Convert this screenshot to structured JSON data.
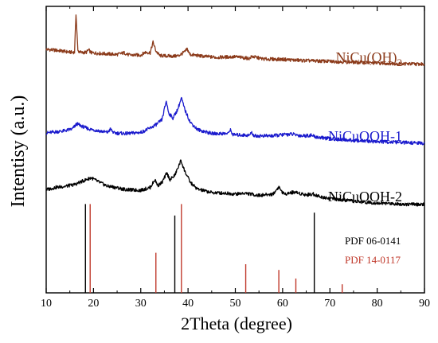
{
  "chart_data": {
    "type": "line",
    "title": "",
    "xlabel": "2Theta (degree)",
    "ylabel": "Intentisy (a.u.)",
    "xlim": [
      10,
      90
    ],
    "x_ticks": [
      "10",
      "20",
      "30",
      "40",
      "50",
      "60",
      "70",
      "80",
      "90"
    ],
    "y_ticks_shown": false,
    "grid": false,
    "legend": "inline labels at right of each curve",
    "series": [
      {
        "name": "NiCu(OH)2",
        "color": "#8b3a1a",
        "points": [
          [
            10,
            0.85
          ],
          [
            13,
            0.845
          ],
          [
            15,
            0.84
          ],
          [
            16,
            0.84
          ],
          [
            16.3,
            0.975
          ],
          [
            16.7,
            0.845
          ],
          [
            17.5,
            0.838
          ],
          [
            18.5,
            0.84
          ],
          [
            19.0,
            0.848
          ],
          [
            19.5,
            0.838
          ],
          [
            22,
            0.835
          ],
          [
            25,
            0.832
          ],
          [
            26.5,
            0.838
          ],
          [
            27.5,
            0.83
          ],
          [
            30,
            0.83
          ],
          [
            31,
            0.84
          ],
          [
            32,
            0.838
          ],
          [
            32.6,
            0.875
          ],
          [
            33.2,
            0.845
          ],
          [
            34,
            0.828
          ],
          [
            37,
            0.826
          ],
          [
            38,
            0.828
          ],
          [
            39.4,
            0.842
          ],
          [
            39.8,
            0.852
          ],
          [
            40.4,
            0.832
          ],
          [
            43,
            0.826
          ],
          [
            46,
            0.822
          ],
          [
            50,
            0.824
          ],
          [
            53,
            0.818
          ],
          [
            53.5,
            0.825
          ],
          [
            56,
            0.816
          ],
          [
            60,
            0.815
          ],
          [
            63,
            0.812
          ],
          [
            66,
            0.81
          ],
          [
            70,
            0.808
          ],
          [
            75,
            0.805
          ],
          [
            80,
            0.802
          ],
          [
            85,
            0.8
          ],
          [
            90,
            0.798
          ]
        ]
      },
      {
        "name": "NiCuOOH-1",
        "color": "#1a1acd",
        "points": [
          [
            10,
            0.558
          ],
          [
            12,
            0.562
          ],
          [
            14,
            0.566
          ],
          [
            15.5,
            0.572
          ],
          [
            16.5,
            0.59
          ],
          [
            17.5,
            0.582
          ],
          [
            19,
            0.572
          ],
          [
            21,
            0.566
          ],
          [
            23,
            0.56
          ],
          [
            23.6,
            0.572
          ],
          [
            24.3,
            0.558
          ],
          [
            27,
            0.556
          ],
          [
            30,
            0.56
          ],
          [
            32,
            0.575
          ],
          [
            33.5,
            0.59
          ],
          [
            34.5,
            0.605
          ],
          [
            35.4,
            0.67
          ],
          [
            35.9,
            0.628
          ],
          [
            36.8,
            0.61
          ],
          [
            37.8,
            0.64
          ],
          [
            38.6,
            0.68
          ],
          [
            39.3,
            0.64
          ],
          [
            40.5,
            0.595
          ],
          [
            42,
            0.57
          ],
          [
            45,
            0.556
          ],
          [
            48.5,
            0.556
          ],
          [
            48.9,
            0.57
          ],
          [
            49.5,
            0.552
          ],
          [
            53,
            0.55
          ],
          [
            53.4,
            0.56
          ],
          [
            54,
            0.548
          ],
          [
            58,
            0.548
          ],
          [
            60,
            0.552
          ],
          [
            62,
            0.554
          ],
          [
            64,
            0.548
          ],
          [
            66,
            0.55
          ],
          [
            67,
            0.544
          ],
          [
            70,
            0.538
          ],
          [
            75,
            0.532
          ],
          [
            80,
            0.528
          ],
          [
            85,
            0.525
          ],
          [
            90,
            0.522
          ]
        ]
      },
      {
        "name": "NiCuOOH-2",
        "color": "#000000",
        "points": [
          [
            10,
            0.36
          ],
          [
            12,
            0.368
          ],
          [
            14,
            0.372
          ],
          [
            16,
            0.378
          ],
          [
            18,
            0.392
          ],
          [
            19.5,
            0.402
          ],
          [
            21,
            0.388
          ],
          [
            23,
            0.372
          ],
          [
            24,
            0.37
          ],
          [
            27,
            0.36
          ],
          [
            30,
            0.358
          ],
          [
            32,
            0.368
          ],
          [
            33.0,
            0.395
          ],
          [
            33.6,
            0.375
          ],
          [
            34.5,
            0.385
          ],
          [
            35.5,
            0.418
          ],
          [
            36.2,
            0.395
          ],
          [
            37.2,
            0.41
          ],
          [
            38.5,
            0.462
          ],
          [
            39.3,
            0.425
          ],
          [
            40.5,
            0.385
          ],
          [
            42,
            0.362
          ],
          [
            45,
            0.35
          ],
          [
            48,
            0.348
          ],
          [
            50,
            0.345
          ],
          [
            52,
            0.348
          ],
          [
            55,
            0.34
          ],
          [
            58,
            0.345
          ],
          [
            59.2,
            0.37
          ],
          [
            60.2,
            0.345
          ],
          [
            62.5,
            0.352
          ],
          [
            65,
            0.342
          ],
          [
            66.5,
            0.345
          ],
          [
            68,
            0.335
          ],
          [
            72,
            0.325
          ],
          [
            76,
            0.318
          ],
          [
            80,
            0.314
          ],
          [
            85,
            0.31
          ],
          [
            90,
            0.308
          ]
        ]
      }
    ],
    "reference_patterns": [
      {
        "name": "PDF 06-0141",
        "color": "#000000",
        "peaks": [
          [
            18.3,
            0.31
          ],
          [
            37.2,
            0.27
          ],
          [
            66.7,
            0.28
          ]
        ]
      },
      {
        "name": "PDF 14-0117",
        "color": "#c0392b",
        "peaks": [
          [
            19.3,
            0.31
          ],
          [
            33.2,
            0.14
          ],
          [
            38.6,
            0.31
          ],
          [
            52.2,
            0.1
          ],
          [
            59.2,
            0.08
          ],
          [
            62.8,
            0.05
          ],
          [
            72.6,
            0.03
          ]
        ]
      }
    ]
  }
}
